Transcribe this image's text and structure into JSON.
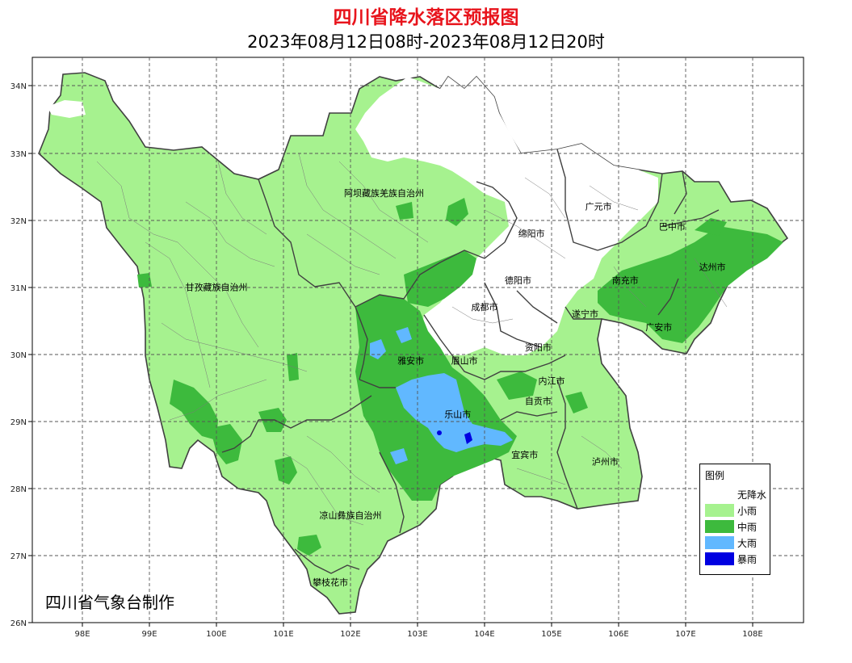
{
  "title": "四川省降水落区预报图",
  "subtitle": "2023年08月12日08时-2023年08月12日20时",
  "credit": "四川省气象台制作",
  "axes": {
    "lat_ticks": [
      "34N",
      "33N",
      "32N",
      "31N",
      "30N",
      "29N",
      "28N",
      "27N",
      "26N"
    ],
    "lon_ticks": [
      "98E",
      "99E",
      "100E",
      "101E",
      "102E",
      "103E",
      "104E",
      "105E",
      "106E",
      "107E",
      "108E"
    ]
  },
  "regions": [
    {
      "label": "阿坝藏族羌族自治州",
      "lon": 102.5,
      "lat": 32.4
    },
    {
      "label": "甘孜藏族自治州",
      "lon": 100.0,
      "lat": 31.0
    },
    {
      "label": "凉山彝族自治州",
      "lon": 102.0,
      "lat": 27.6
    },
    {
      "label": "攀枝花市",
      "lon": 101.7,
      "lat": 26.6
    },
    {
      "label": "广元市",
      "lon": 105.7,
      "lat": 32.2
    },
    {
      "label": "巴中市",
      "lon": 106.8,
      "lat": 31.9
    },
    {
      "label": "绵阳市",
      "lon": 104.7,
      "lat": 31.8
    },
    {
      "label": "达州市",
      "lon": 107.4,
      "lat": 31.3
    },
    {
      "label": "德阳市",
      "lon": 104.5,
      "lat": 31.1
    },
    {
      "label": "南充市",
      "lon": 106.1,
      "lat": 31.1
    },
    {
      "label": "成都市",
      "lon": 104.0,
      "lat": 30.7
    },
    {
      "label": "遂宁市",
      "lon": 105.5,
      "lat": 30.6
    },
    {
      "label": "广安市",
      "lon": 106.6,
      "lat": 30.4
    },
    {
      "label": "资阳市",
      "lon": 104.8,
      "lat": 30.1
    },
    {
      "label": "雅安市",
      "lon": 102.9,
      "lat": 29.9
    },
    {
      "label": "眉山市",
      "lon": 103.7,
      "lat": 29.9
    },
    {
      "label": "内江市",
      "lon": 105.0,
      "lat": 29.6
    },
    {
      "label": "乐山市",
      "lon": 103.6,
      "lat": 29.1
    },
    {
      "label": "自贡市",
      "lon": 104.8,
      "lat": 29.3
    },
    {
      "label": "宜宾市",
      "lon": 104.6,
      "lat": 28.5
    },
    {
      "label": "泸州市",
      "lon": 105.8,
      "lat": 28.4
    }
  ],
  "legend": {
    "title": "图例",
    "items": [
      {
        "label": "无降水",
        "color": "#ffffff"
      },
      {
        "label": "小雨",
        "color": "#a6f28f"
      },
      {
        "label": "中雨",
        "color": "#3dba3d"
      },
      {
        "label": "大雨",
        "color": "#61b8ff"
      },
      {
        "label": "暴雨",
        "color": "#0000e1"
      }
    ]
  },
  "colors": {
    "light_rain": "#a6f28f",
    "moderate_rain": "#3dba3d",
    "heavy_rain": "#61b8ff",
    "rainstorm": "#0000e1",
    "no_rain": "#ffffff",
    "title": "#e8141c"
  }
}
